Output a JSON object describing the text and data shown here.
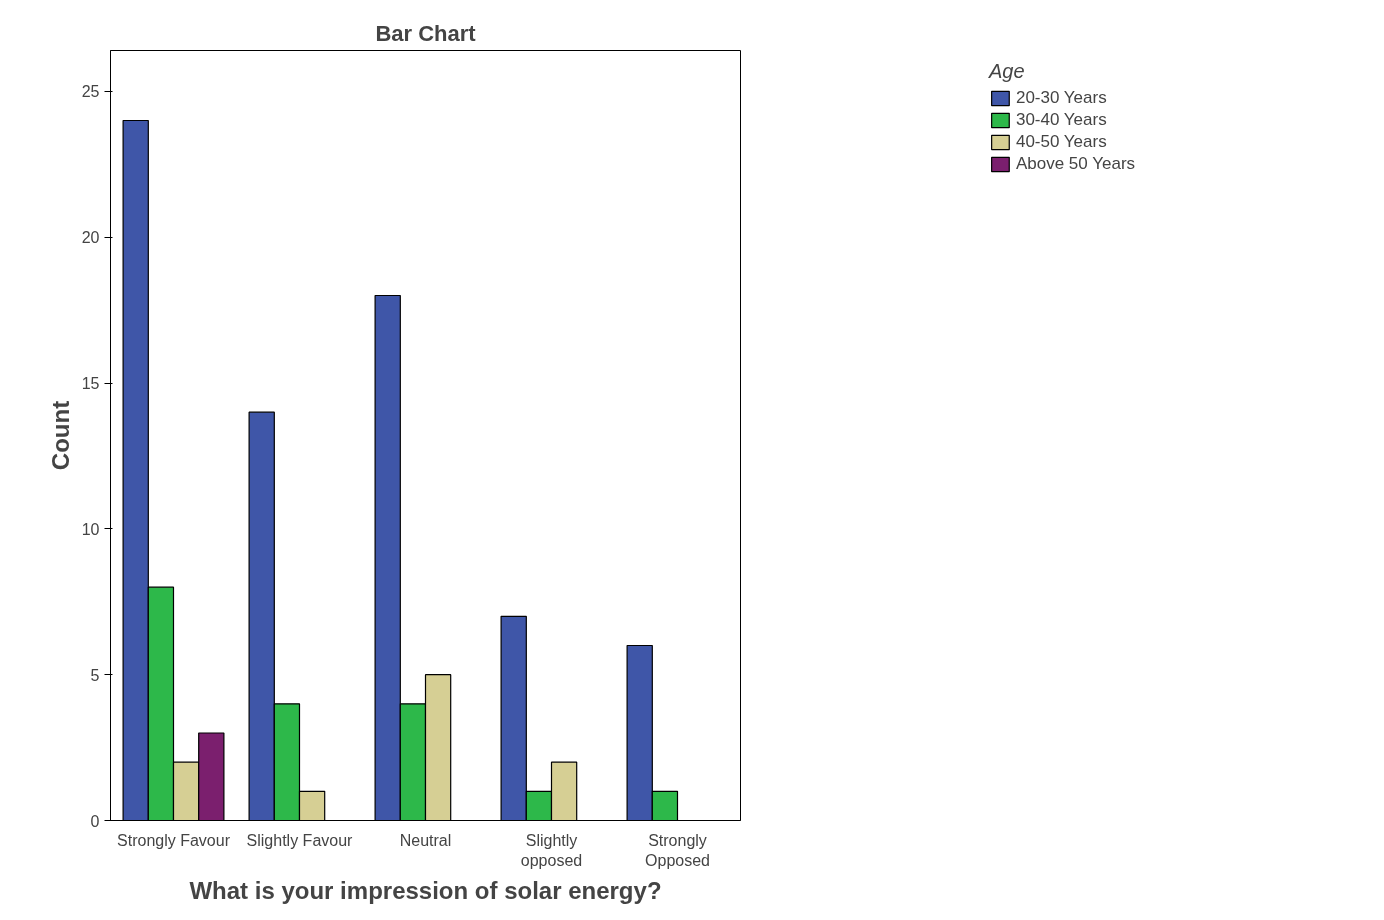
{
  "chart_data": {
    "type": "bar",
    "title": "Bar Chart",
    "xlabel": "What is your impression of solar energy?",
    "ylabel": "Count",
    "legend_title": "Age",
    "categories": [
      "Strongly Favour",
      "Slightly Favour",
      "Neutral",
      "Slightly opposed",
      "Strongly Opposed"
    ],
    "series": [
      {
        "name": "20-30 Years",
        "color": "#3f56a8",
        "values": [
          24,
          14,
          18,
          7,
          6
        ]
      },
      {
        "name": "30-40 Years",
        "color": "#2db84a",
        "values": [
          8,
          4,
          4,
          1,
          1
        ]
      },
      {
        "name": "40-50 Years",
        "color": "#d6cf94",
        "values": [
          2,
          1,
          5,
          2,
          null
        ]
      },
      {
        "name": "Above 50 Years",
        "color": "#7b1f6e",
        "values": [
          3,
          null,
          null,
          null,
          null
        ]
      }
    ],
    "ylim": [
      0,
      26.4
    ],
    "yticks": [
      0,
      5,
      10,
      15,
      20,
      25
    ],
    "grid": false,
    "legend": "top right"
  }
}
